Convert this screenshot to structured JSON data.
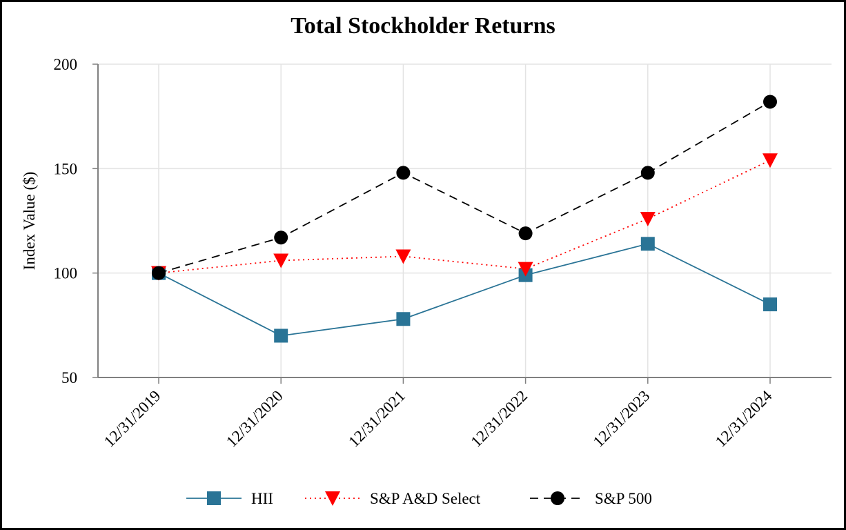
{
  "chart_data": {
    "type": "line",
    "title": "Total Stockholder Returns",
    "xlabel": "",
    "ylabel": "Index Value ($)",
    "ylim": [
      50,
      200
    ],
    "yticks": [
      50,
      100,
      150,
      200
    ],
    "grid": true,
    "legend_position": "bottom",
    "categories": [
      "12/31/2019",
      "12/31/2020",
      "12/31/2021",
      "12/31/2022",
      "12/31/2023",
      "12/31/2024"
    ],
    "series": [
      {
        "name": "HII",
        "values": [
          100,
          70,
          78,
          99,
          114,
          85
        ],
        "color": "#2a7496",
        "marker": "square",
        "line_style": "solid"
      },
      {
        "name": "S&P A&D Select",
        "values": [
          100,
          106,
          108,
          102,
          126,
          154
        ],
        "color": "#ff0000",
        "marker": "triangle-down",
        "line_style": "dotted"
      },
      {
        "name": "S&P 500",
        "values": [
          100,
          117,
          148,
          119,
          148,
          182
        ],
        "color": "#000000",
        "marker": "circle",
        "line_style": "dashed"
      }
    ]
  }
}
